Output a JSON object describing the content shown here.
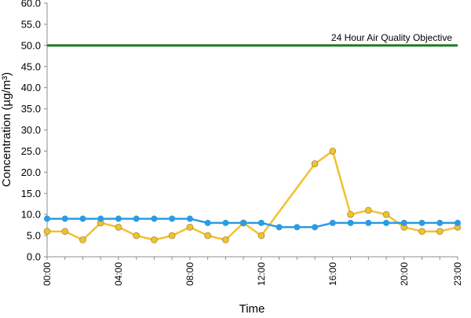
{
  "chart_data": {
    "type": "line",
    "title": "",
    "xlabel": "Time",
    "ylabel": "Concentration (µg/m³)",
    "ylim": [
      0,
      60
    ],
    "yticks": [
      "0.0",
      "5.0",
      "10.0",
      "15.0",
      "20.0",
      "25.0",
      "30.0",
      "35.0",
      "40.0",
      "45.0",
      "50.0",
      "55.0",
      "60.0"
    ],
    "x": [
      "00:00",
      "01:00",
      "02:00",
      "03:00",
      "04:00",
      "05:00",
      "06:00",
      "07:00",
      "08:00",
      "09:00",
      "10:00",
      "11:00",
      "12:00",
      "13:00",
      "14:00",
      "15:00",
      "16:00",
      "17:00",
      "18:00",
      "19:00",
      "20:00",
      "21:00",
      "22:00",
      "23:00"
    ],
    "xtick_labels": [
      "00:00",
      "04:00",
      "08:00",
      "12:00",
      "16:00",
      "20:00",
      "23:00"
    ],
    "grid": false,
    "legend": "none",
    "series": [
      {
        "color": "#f2c12e",
        "marker": "circle",
        "values": [
          6,
          6,
          4,
          8,
          7,
          5,
          4,
          5,
          7,
          5,
          4,
          8,
          5,
          null,
          null,
          22,
          25,
          10,
          11,
          10,
          7,
          6,
          6,
          7
        ]
      },
      {
        "color": "#2b9be4",
        "marker": "circle",
        "values": [
          9,
          9,
          9,
          9,
          9,
          9,
          9,
          9,
          9,
          8,
          8,
          8,
          8,
          7,
          7,
          7,
          8,
          8,
          8,
          8,
          8,
          8,
          8,
          8
        ]
      }
    ],
    "reference_line": {
      "label": "24 Hour Air Quality Objective",
      "value": 50,
      "color": "#1e7a1e"
    }
  }
}
